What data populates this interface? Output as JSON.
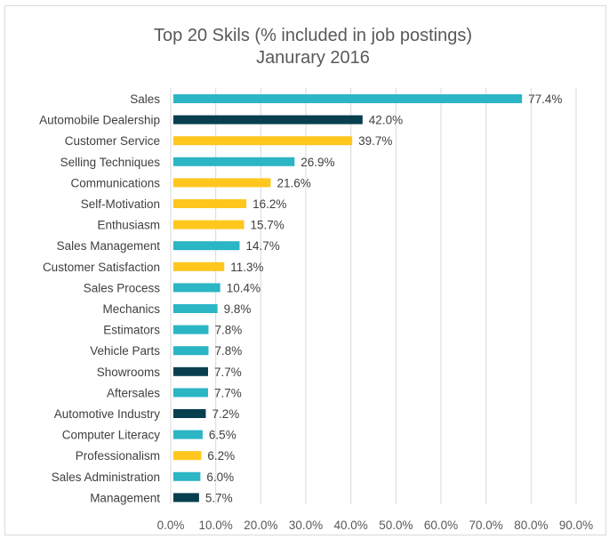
{
  "chart_data": {
    "type": "bar",
    "orientation": "horizontal",
    "title_lines": [
      "Top 20 Skils (% included in job postings)",
      "Janurary 2016"
    ],
    "categories": [
      "Sales",
      "Automobile Dealership",
      "Customer Service",
      "Selling Techniques",
      "Communications",
      "Self-Motivation",
      "Enthusiasm",
      "Sales Management",
      "Customer Satisfaction",
      "Sales Process",
      "Mechanics",
      "Estimators",
      "Vehicle Parts",
      "Showrooms",
      "Aftersales",
      "Automotive Industry",
      "Computer Literacy",
      "Professionalism",
      "Sales Administration",
      "Management"
    ],
    "values": [
      77.4,
      42.0,
      39.7,
      26.9,
      21.6,
      16.2,
      15.7,
      14.7,
      11.3,
      10.4,
      9.8,
      7.8,
      7.8,
      7.7,
      7.7,
      7.2,
      6.5,
      6.2,
      6.0,
      5.7
    ],
    "value_labels": [
      "77.4%",
      "42.0%",
      "39.7%",
      "26.9%",
      "21.6%",
      "16.2%",
      "15.7%",
      "14.7%",
      "11.3%",
      "10.4%",
      "9.8%",
      "7.8%",
      "7.8%",
      "7.7%",
      "7.7%",
      "7.2%",
      "6.5%",
      "6.2%",
      "6.0%",
      "5.7%"
    ],
    "bar_colors": [
      "teal",
      "navy",
      "gold",
      "teal",
      "gold",
      "gold",
      "gold",
      "teal",
      "gold",
      "teal",
      "teal",
      "teal",
      "teal",
      "navy",
      "teal",
      "navy",
      "teal",
      "gold",
      "teal",
      "navy"
    ],
    "palette": {
      "teal": "#2bb5c5",
      "navy": "#073f4e",
      "gold": "#ffc61e"
    },
    "xlim": [
      0,
      90
    ],
    "x_ticks": [
      "0.0%",
      "10.0%",
      "20.0%",
      "30.0%",
      "40.0%",
      "50.0%",
      "60.0%",
      "70.0%",
      "80.0%",
      "90.0%"
    ],
    "grid": "vertical",
    "legend": "none"
  }
}
